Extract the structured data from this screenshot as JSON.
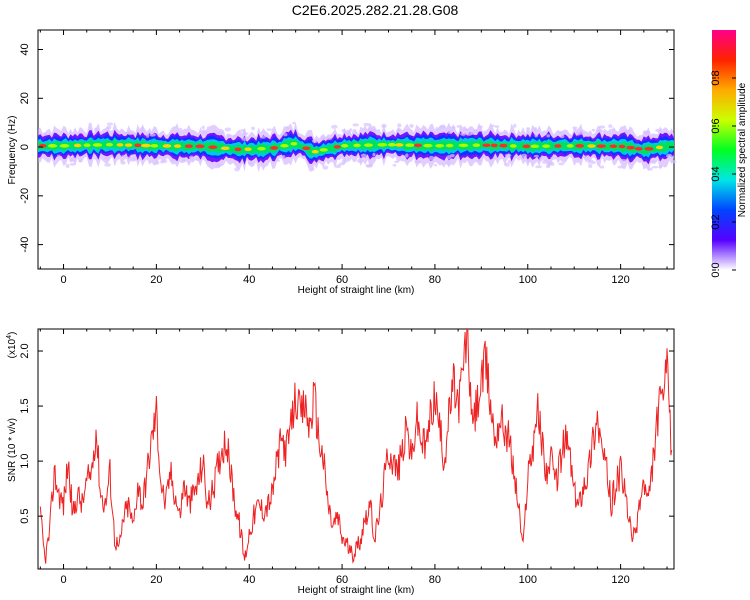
{
  "title": "C2E6.2025.282.21.28.G08",
  "chart_data": [
    {
      "type": "heatmap",
      "xlabel": "Height of straight line (km)",
      "ylabel": "Frequency (Hz)",
      "xlim": [
        -5.5,
        131.5
      ],
      "ylim": [
        -50,
        48
      ],
      "x_ticks": [
        0,
        20,
        40,
        60,
        80,
        100,
        120
      ],
      "x_tick_labels": [
        "0",
        "20",
        "40",
        "60",
        "80",
        "100",
        "120"
      ],
      "y_ticks": [
        40,
        20,
        0,
        -20,
        -40
      ],
      "y_tick_labels": [
        "40",
        "20",
        "0",
        "-20",
        "-40"
      ],
      "colorbar": {
        "label": "Normalized spectral amplitude",
        "range": [
          0.0,
          1.0
        ],
        "ticks": [
          0.0,
          0.2,
          0.4,
          0.6,
          0.8
        ],
        "tick_labels": [
          "0.0",
          "0.2",
          "0.4",
          "0.6",
          "0.8"
        ],
        "colors": [
          "#ffffff",
          "#5500ff",
          "#0044ff",
          "#00e6e6",
          "#00ff22",
          "#ccff00",
          "#ffaa00",
          "#ff2200",
          "#ff0088"
        ]
      },
      "center_frequency_profile": {
        "x": [
          -5,
          0,
          10,
          20,
          30,
          38,
          45,
          50,
          54,
          60,
          70,
          80,
          90,
          100,
          110,
          120,
          125,
          131
        ],
        "y": [
          0.5,
          0.5,
          1.0,
          0.5,
          0.3,
          -1.0,
          -0.5,
          1.5,
          -2.0,
          0.5,
          1.0,
          0.5,
          0.8,
          0.3,
          0.5,
          0.3,
          -1.0,
          0.5
        ]
      },
      "band_halfwidth_hz": 3
    },
    {
      "type": "line",
      "xlabel": "Height of straight line (km)",
      "ylabel": "SNR (10 * v/v)",
      "y_multiplier": "(x10",
      "y_multiplier_exp": "4",
      "xlim": [
        -5.5,
        131.5
      ],
      "ylim": [
        0.02,
        2.2
      ],
      "x_ticks": [
        0,
        20,
        40,
        60,
        80,
        100,
        120
      ],
      "x_tick_labels": [
        "0",
        "20",
        "40",
        "60",
        "80",
        "100",
        "120"
      ],
      "y_ticks": [
        0.5,
        1.0,
        1.5,
        2.0
      ],
      "y_tick_labels": [
        "0.5",
        "1.0",
        "1.5",
        "2.0"
      ],
      "line_color": "#ee2222",
      "series": [
        {
          "x": [
            -5,
            -4,
            -3,
            -2,
            -1,
            0,
            1,
            2,
            3,
            4,
            5,
            6,
            7,
            8,
            9,
            10,
            11,
            12,
            13,
            14,
            15,
            16,
            17,
            18,
            19,
            20,
            21,
            22,
            23,
            24,
            25,
            26,
            27,
            28,
            29,
            30,
            31,
            32,
            33,
            34,
            35,
            36,
            37,
            38,
            39,
            40,
            41,
            42,
            43,
            44,
            45,
            46,
            47,
            48,
            49,
            50,
            51,
            52,
            53,
            54,
            55,
            56,
            57,
            58,
            59,
            60,
            61,
            62,
            63,
            64,
            65,
            66,
            67,
            68,
            69,
            70,
            71,
            72,
            73,
            74,
            75,
            76,
            77,
            78,
            79,
            80,
            81,
            82,
            83,
            84,
            85,
            86,
            87,
            88,
            89,
            90,
            91,
            92,
            93,
            94,
            95,
            96,
            97,
            98,
            99,
            100,
            101,
            102,
            103,
            104,
            105,
            106,
            107,
            108,
            109,
            110,
            111,
            112,
            113,
            114,
            115,
            116,
            117,
            118,
            119,
            120,
            121,
            122,
            123,
            124,
            125,
            126,
            127,
            128,
            129,
            130,
            131
          ],
          "y": [
            0.5,
            0.1,
            0.35,
            0.9,
            0.7,
            0.6,
            1.0,
            0.5,
            0.7,
            0.6,
            0.8,
            0.9,
            1.3,
            0.7,
            0.6,
            0.9,
            0.3,
            0.2,
            0.5,
            0.6,
            0.4,
            0.8,
            0.6,
            0.9,
            1.2,
            1.45,
            0.8,
            0.6,
            0.9,
            0.7,
            0.5,
            0.8,
            0.6,
            0.7,
            0.8,
            1.0,
            0.6,
            0.7,
            0.9,
            1.1,
            1.2,
            0.9,
            0.6,
            0.4,
            0.1,
            0.35,
            0.5,
            0.6,
            0.55,
            0.6,
            0.7,
            1.0,
            1.2,
            1.1,
            1.3,
            1.6,
            1.4,
            1.5,
            1.3,
            1.6,
            1.2,
            1.0,
            0.6,
            0.4,
            0.5,
            0.3,
            0.25,
            0.15,
            0.2,
            0.3,
            0.5,
            0.6,
            0.3,
            0.5,
            0.8,
            1.1,
            1.0,
            0.9,
            1.1,
            1.3,
            1.0,
            1.4,
            1.2,
            1.1,
            1.4,
            1.6,
            1.3,
            1.0,
            1.4,
            1.7,
            1.5,
            1.8,
            2.2,
            1.3,
            1.5,
            1.7,
            1.9,
            1.5,
            1.2,
            1.4,
            1.3,
            1.2,
            0.9,
            0.6,
            0.2,
            0.9,
            1.1,
            1.5,
            1.2,
            0.9,
            1.0,
            0.8,
            1.0,
            1.2,
            1.1,
            0.7,
            0.6,
            0.8,
            0.9,
            1.2,
            1.4,
            1.1,
            0.9,
            0.6,
            0.8,
            0.9,
            0.7,
            0.4,
            0.3,
            0.6,
            0.8,
            0.6,
            1.0,
            1.4,
            1.6,
            1.8,
            1.1
          ]
        }
      ]
    }
  ]
}
